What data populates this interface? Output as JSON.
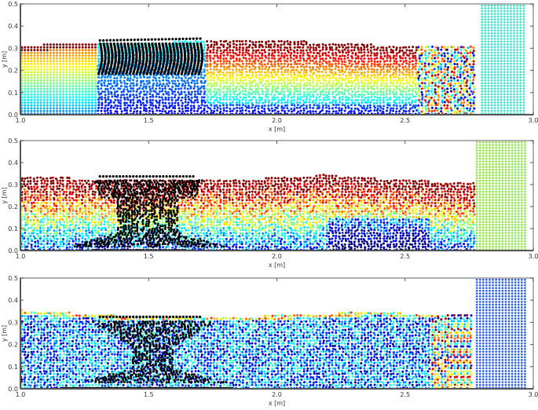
{
  "figure": {
    "description": "Three stacked SPH particle simulation snapshots of dam-break flow around a flexible structure",
    "colormap": "jet"
  },
  "chart_data": [
    {
      "type": "scatter",
      "title": "",
      "xlabel": "x [m]",
      "ylabel": "y [m]",
      "xlim": [
        1.0,
        3.0
      ],
      "ylim": [
        0.0,
        0.5
      ],
      "xticks": [
        "1.0",
        "1.5",
        "2.0",
        "2.5",
        "3.0"
      ],
      "yticks": [
        "0.0",
        "0.1",
        "0.2",
        "0.3",
        "0.4",
        "0.5"
      ],
      "grid": false,
      "legend": null,
      "series": [
        {
          "name": "fluid",
          "x_range": [
            1.0,
            2.78
          ],
          "surface_y": [
            [
              1.0,
              0.315
            ],
            [
              1.3,
              0.32
            ],
            [
              1.8,
              0.335
            ],
            [
              2.1,
              0.33
            ],
            [
              2.5,
              0.31
            ],
            [
              2.78,
              0.31
            ]
          ],
          "color_pattern": "layered",
          "colormap": "jet"
        },
        {
          "name": "structure",
          "color": "#000000",
          "x_range": [
            1.3,
            1.7
          ],
          "y_range": [
            0.18,
            0.34
          ],
          "shape": "vertical-fibers"
        },
        {
          "name": "gate-block",
          "color": "#33e6c8",
          "x_range": [
            2.8,
            2.97
          ],
          "y_range": [
            0.0,
            0.5
          ]
        }
      ]
    },
    {
      "type": "scatter",
      "title": "",
      "xlabel": "x [m]",
      "ylabel": "y [m]",
      "xlim": [
        1.0,
        3.0
      ],
      "ylim": [
        0.0,
        0.5
      ],
      "xticks": [
        "1.0",
        "1.5",
        "2.0",
        "2.5",
        "3.0"
      ],
      "yticks": [
        "0.0",
        "0.1",
        "0.2",
        "0.3",
        "0.4",
        "0.5"
      ],
      "grid": false,
      "legend": null,
      "series": [
        {
          "name": "fluid",
          "x_range": [
            1.0,
            2.77
          ],
          "surface_y": [
            [
              1.0,
              0.335
            ],
            [
              1.5,
              0.32
            ],
            [
              2.0,
              0.33
            ],
            [
              2.2,
              0.345
            ],
            [
              2.5,
              0.32
            ],
            [
              2.77,
              0.31
            ]
          ],
          "color_pattern": "mixed-warm-top",
          "colormap": "jet"
        },
        {
          "name": "structure",
          "color": "#000000",
          "x_range": [
            1.2,
            1.8
          ],
          "y_range": [
            0.0,
            0.34
          ],
          "shape": "anvil-splayed-base"
        },
        {
          "name": "gate-block",
          "color": "#8ee84a",
          "x_range": [
            2.78,
            2.97
          ],
          "y_range": [
            0.0,
            0.5
          ]
        }
      ]
    },
    {
      "type": "scatter",
      "title": "",
      "xlabel": "x [m]",
      "ylabel": "y [m]",
      "xlim": [
        1.0,
        3.0
      ],
      "ylim": [
        0.0,
        0.5
      ],
      "xticks": [
        "1.0",
        "1.5",
        "2.0",
        "2.5",
        "3.0"
      ],
      "yticks": [
        "0.0",
        "0.1",
        "0.2",
        "0.3",
        "0.4",
        "0.5"
      ],
      "grid": false,
      "legend": null,
      "series": [
        {
          "name": "fluid",
          "x_range": [
            1.0,
            2.76
          ],
          "surface_y": [
            [
              1.0,
              0.355
            ],
            [
              1.5,
              0.32
            ],
            [
              2.0,
              0.33
            ],
            [
              2.4,
              0.35
            ],
            [
              2.5,
              0.34
            ],
            [
              2.76,
              0.33
            ]
          ],
          "color_pattern": "mixed-cool",
          "colormap": "jet"
        },
        {
          "name": "structure",
          "color": "#000000",
          "x_range": [
            1.15,
            1.85
          ],
          "y_range": [
            0.0,
            0.33
          ],
          "shape": "hourglass"
        },
        {
          "name": "gate-block",
          "color": "#2a5ff0",
          "x_range": [
            2.78,
            2.97
          ],
          "y_range": [
            0.0,
            0.5
          ]
        }
      ]
    }
  ]
}
